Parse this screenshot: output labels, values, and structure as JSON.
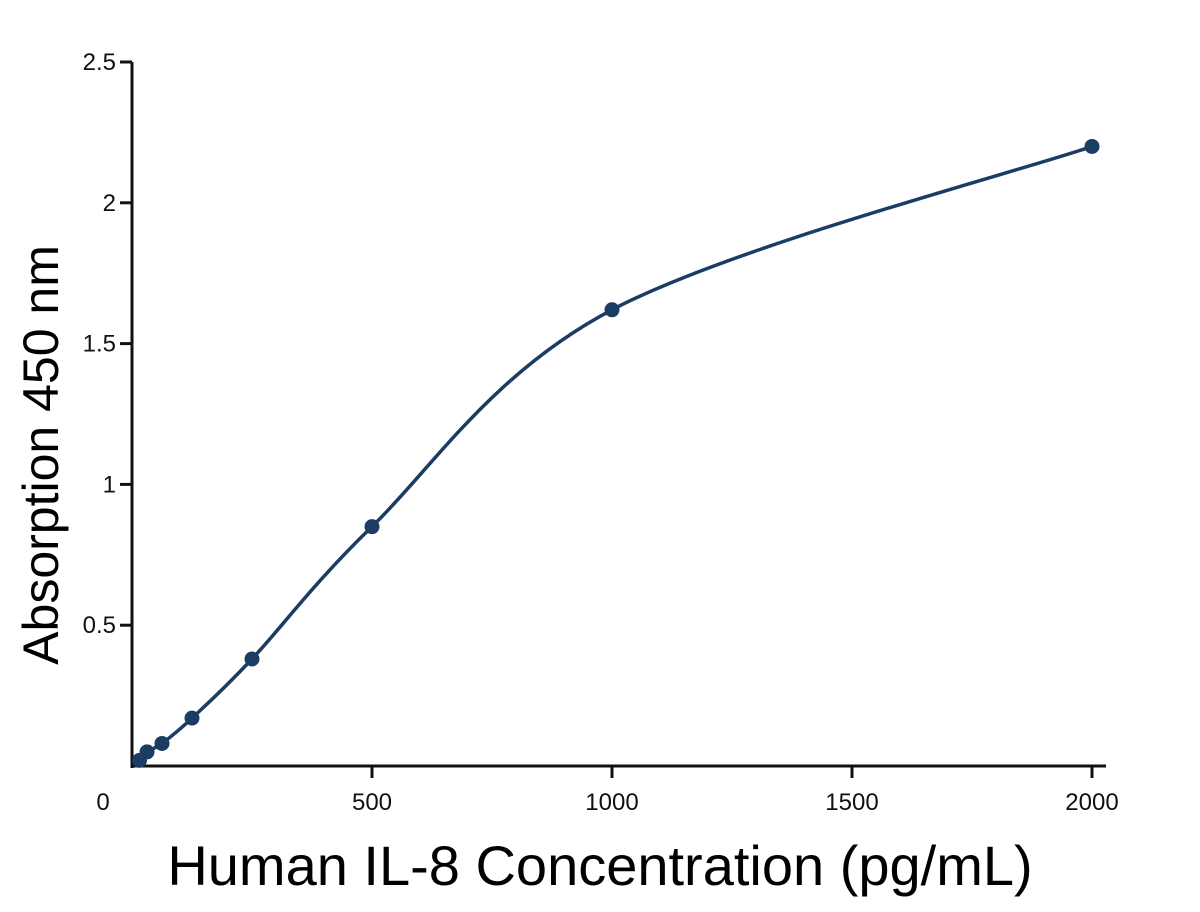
{
  "chart_data": {
    "type": "scatter",
    "xlabel": "Human IL-8 Concentration (pg/mL)",
    "ylabel": "Absorption 450 nm",
    "xlim": [
      0,
      2000
    ],
    "ylim": [
      0,
      2.5
    ],
    "x_ticks": [
      0,
      500,
      1000,
      1500,
      2000
    ],
    "x_tick_labels": [
      "0",
      "500",
      "1000",
      "1500",
      "2000"
    ],
    "y_ticks": [
      0.5,
      1,
      1.5,
      2,
      2.5
    ],
    "y_tick_labels": [
      "0.5",
      "1",
      "1.5",
      "2",
      "2.5"
    ],
    "grid": false,
    "series": [
      {
        "color": "#1b3c63",
        "points": [
          {
            "x": 15.6,
            "y": 0.02
          },
          {
            "x": 31.3,
            "y": 0.05
          },
          {
            "x": 62.5,
            "y": 0.08
          },
          {
            "x": 125,
            "y": 0.17
          },
          {
            "x": 250,
            "y": 0.38
          },
          {
            "x": 500,
            "y": 0.85
          },
          {
            "x": 1000,
            "y": 1.62
          },
          {
            "x": 2000,
            "y": 2.2
          }
        ],
        "fit_curve": "smooth"
      }
    ]
  }
}
